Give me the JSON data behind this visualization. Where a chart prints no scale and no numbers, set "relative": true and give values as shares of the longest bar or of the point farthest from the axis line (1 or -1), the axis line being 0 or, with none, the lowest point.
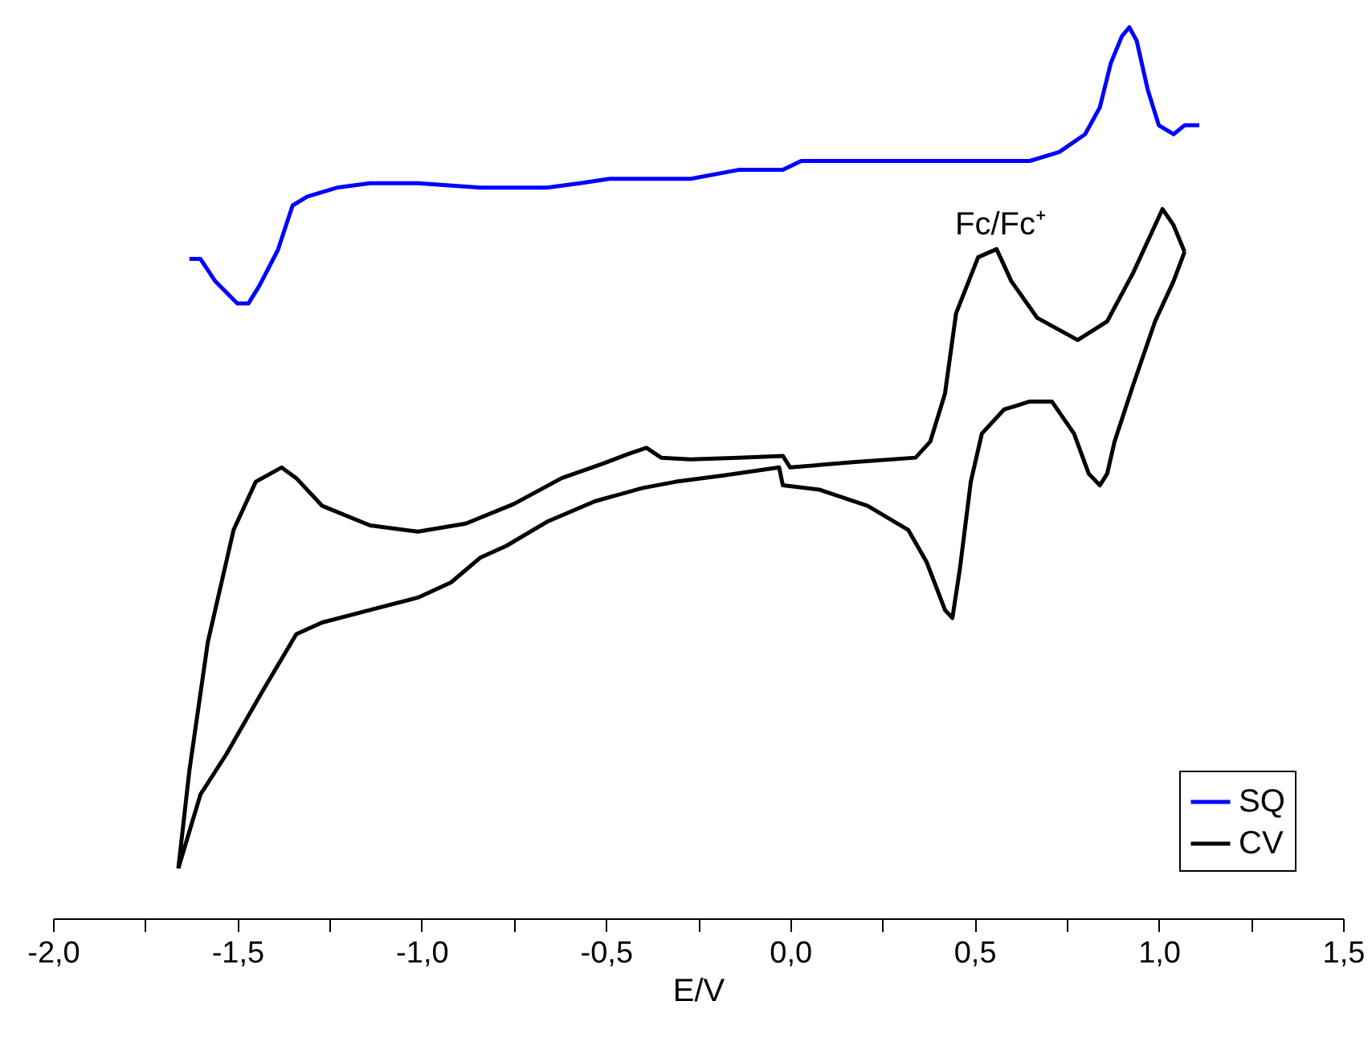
{
  "chart_data": {
    "type": "line",
    "relative": true,
    "xlabel": "E/V",
    "xlim": [
      -2.0,
      1.5
    ],
    "xticks": [
      {
        "value": -2.0,
        "label": "-2,0"
      },
      {
        "value": -1.75,
        "label": null
      },
      {
        "value": -1.5,
        "label": "-1,5"
      },
      {
        "value": -1.25,
        "label": null
      },
      {
        "value": -1.0,
        "label": "-1,0"
      },
      {
        "value": -0.75,
        "label": null
      },
      {
        "value": -0.5,
        "label": "-0,5"
      },
      {
        "value": -0.25,
        "label": null
      },
      {
        "value": 0.0,
        "label": "0,0"
      },
      {
        "value": 0.25,
        "label": null
      },
      {
        "value": 0.5,
        "label": "0,5"
      },
      {
        "value": 0.75,
        "label": null
      },
      {
        "value": 1.0,
        "label": "1,0"
      },
      {
        "value": 1.25,
        "label": null
      },
      {
        "value": 1.5,
        "label": "1,5"
      }
    ],
    "tick_labels": "x",
    "grid": false,
    "legend": "bottom right",
    "marker": "none",
    "line_style": "solid",
    "annotations": [
      "Fc/Fc⁺"
    ],
    "series": [
      {
        "name": "SQ",
        "color": "#0000ff",
        "x": [
          -1.63,
          -1.6,
          -1.56,
          -1.5,
          -1.47,
          -1.44,
          -1.39,
          -1.35,
          -1.31,
          -1.23,
          -1.14,
          -1.01,
          -0.84,
          -0.75,
          -0.66,
          -0.57,
          -0.49,
          -0.4,
          -0.27,
          -0.14,
          -0.02,
          0.03,
          0.25,
          0.47,
          0.65,
          0.73,
          0.8,
          0.84,
          0.87,
          0.9,
          0.92,
          0.94,
          0.97,
          1.0,
          1.04,
          1.07,
          1.11
        ],
        "values": [
          0.74,
          0.74,
          0.715,
          0.69,
          0.69,
          0.71,
          0.75,
          0.8,
          0.81,
          0.82,
          0.825,
          0.825,
          0.82,
          0.82,
          0.82,
          0.825,
          0.83,
          0.83,
          0.83,
          0.84,
          0.84,
          0.85,
          0.85,
          0.85,
          0.85,
          0.86,
          0.88,
          0.91,
          0.96,
          0.99,
          1.0,
          0.985,
          0.93,
          0.89,
          0.88,
          0.89,
          0.89
        ]
      },
      {
        "name": "CV",
        "color": "#000000",
        "x": [
          -1.66,
          -1.63,
          -1.58,
          -1.51,
          -1.45,
          -1.38,
          -1.34,
          -1.27,
          -1.14,
          -1.01,
          -0.88,
          -0.75,
          -0.62,
          -0.51,
          -0.44,
          -0.39,
          -0.35,
          -0.27,
          -0.14,
          -0.02,
          0.0,
          0.17,
          0.34,
          0.38,
          0.42,
          0.45,
          0.51,
          0.56,
          0.6,
          0.67,
          0.78,
          0.86,
          0.93,
          0.99,
          1.01,
          1.04,
          1.07
        ],
        "values": [
          0.056,
          0.166,
          0.31,
          0.436,
          0.49,
          0.506,
          0.494,
          0.463,
          0.441,
          0.434,
          0.443,
          0.465,
          0.494,
          0.51,
          0.521,
          0.528,
          0.517,
          0.515,
          0.517,
          0.519,
          0.506,
          0.512,
          0.517,
          0.535,
          0.589,
          0.679,
          0.742,
          0.751,
          0.715,
          0.674,
          0.649,
          0.67,
          0.724,
          0.778,
          0.796,
          0.778,
          0.748
        ]
      },
      {
        "color": "#000000",
        "x": [
          1.07,
          1.04,
          0.99,
          0.93,
          0.88,
          0.86,
          0.84,
          0.81,
          0.77,
          0.71,
          0.65,
          0.58,
          0.52,
          0.49,
          0.46,
          0.44,
          0.42,
          0.37,
          0.32,
          0.21,
          0.08,
          -0.02,
          -0.03,
          -0.18,
          -0.31,
          -0.4,
          -0.53,
          -0.66,
          -0.77,
          -0.84,
          -0.92,
          -1.01,
          -1.14,
          -1.27,
          -1.34,
          -1.43,
          -1.53,
          -1.6,
          -1.66
        ],
        "values": [
          0.748,
          0.715,
          0.67,
          0.598,
          0.535,
          0.499,
          0.486,
          0.499,
          0.544,
          0.58,
          0.58,
          0.571,
          0.544,
          0.49,
          0.391,
          0.337,
          0.346,
          0.4,
          0.436,
          0.463,
          0.481,
          0.486,
          0.506,
          0.497,
          0.49,
          0.483,
          0.468,
          0.445,
          0.418,
          0.405,
          0.377,
          0.36,
          0.346,
          0.332,
          0.319,
          0.256,
          0.184,
          0.139,
          0.056
        ]
      }
    ]
  }
}
